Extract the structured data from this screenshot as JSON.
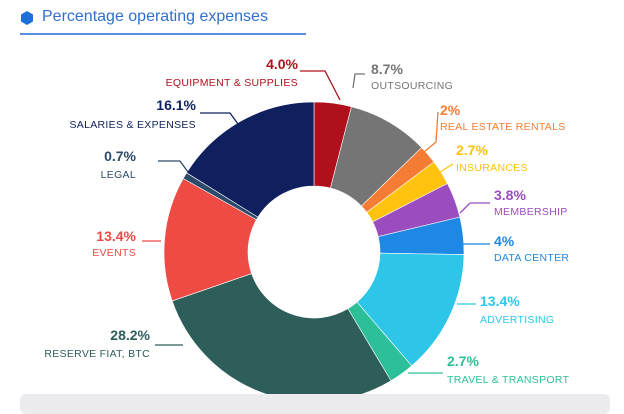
{
  "header": {
    "icon": "hexagon-bullet-icon",
    "title": "Percentage operating expenses"
  },
  "chart_data": {
    "type": "pie",
    "variant": "donut",
    "title": "Percentage operating expenses",
    "slices": [
      {
        "label": "EQUIPMENT & SUPPLIES",
        "value": 4.0,
        "display": "4.0%",
        "color": "#b0101b"
      },
      {
        "label": "OUTSOURCING",
        "value": 8.7,
        "display": "8.7%",
        "color": "#757575"
      },
      {
        "label": "REAL ESTATE RENTALS",
        "value": 2.0,
        "display": "2%",
        "color": "#f57c35"
      },
      {
        "label": "INSURANCES",
        "value": 2.7,
        "display": "2.7%",
        "color": "#ffc20e"
      },
      {
        "label": "MEMBERSHIP",
        "value": 3.8,
        "display": "3.8%",
        "color": "#9b4dbf"
      },
      {
        "label": "DATA CENTER",
        "value": 4.0,
        "display": "4%",
        "color": "#1e88e5"
      },
      {
        "label": "ADVERTISING",
        "value": 13.4,
        "display": "13.4%",
        "color": "#2ec6e8"
      },
      {
        "label": "TRAVEL & TRANSPORT",
        "value": 2.7,
        "display": "2.7%",
        "color": "#2dbf97"
      },
      {
        "label": "RESERVE FIAT, BTC",
        "value": 28.2,
        "display": "28.2%",
        "color": "#2d5e5a"
      },
      {
        "label": "EVENTS",
        "value": 13.4,
        "display": "13.4%",
        "color": "#ef4b45"
      },
      {
        "label": "LEGAL",
        "value": 0.7,
        "display": "0.7%",
        "color": "#2c4a6a"
      },
      {
        "label": "SALARIES & EXPENSES",
        "value": 16.1,
        "display": "16.1%",
        "color": "#10205e"
      }
    ]
  }
}
